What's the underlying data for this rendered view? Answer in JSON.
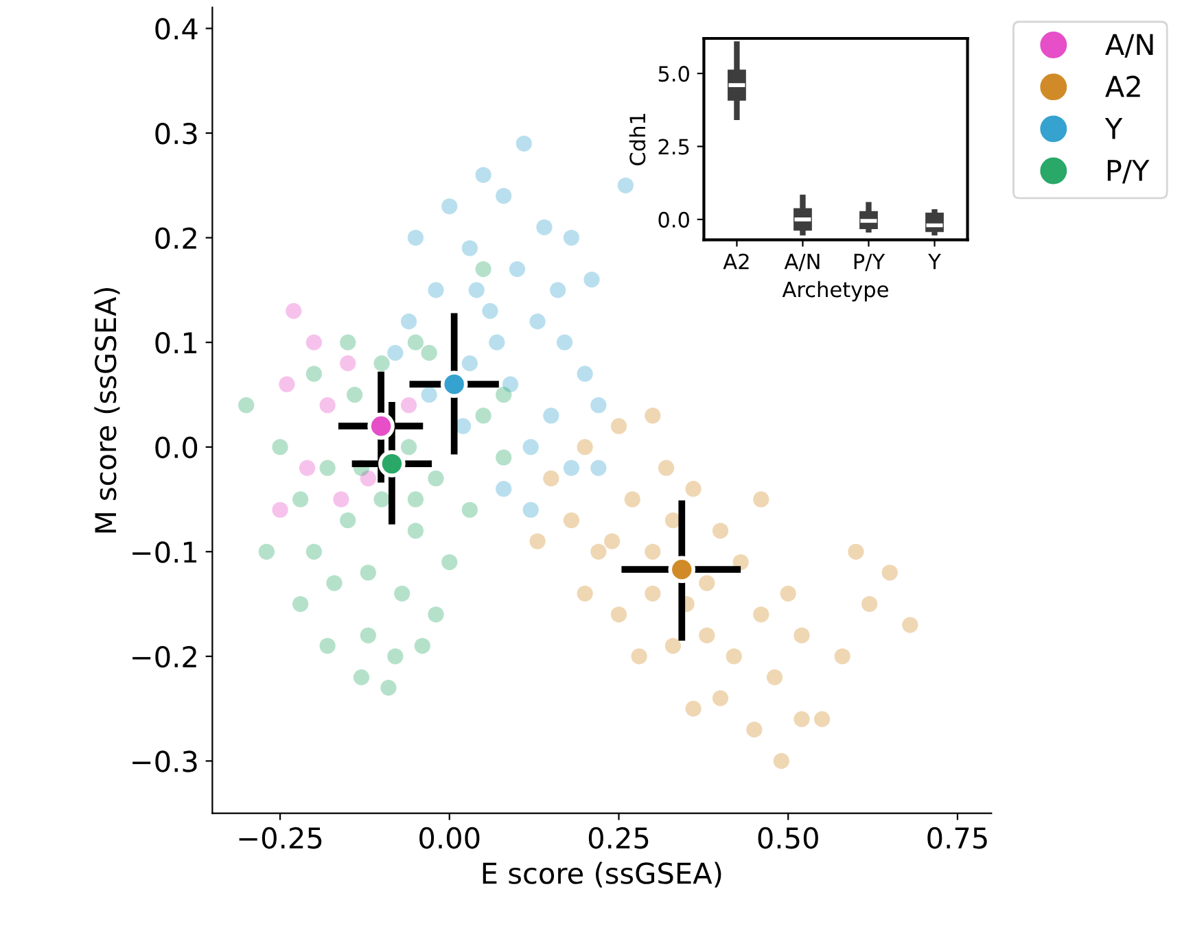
{
  "chart_data": [
    {
      "type": "scatter",
      "xlabel": "E score (ssGSEA)",
      "ylabel": "M score (ssGSEA)",
      "xlim": [
        -0.35,
        0.8
      ],
      "ylim": [
        -0.35,
        0.42
      ],
      "xticks": [
        {
          "value": -0.25,
          "label": "−0.25"
        },
        {
          "value": 0,
          "label": "0.00"
        },
        {
          "value": 0.25,
          "label": "0.25"
        },
        {
          "value": 0.5,
          "label": "0.50"
        },
        {
          "value": 0.75,
          "label": "0.75"
        }
      ],
      "yticks": [
        {
          "value": -0.3,
          "label": "−0.3"
        },
        {
          "value": -0.2,
          "label": "−0.2"
        },
        {
          "value": -0.1,
          "label": "−0.1"
        },
        {
          "value": 0,
          "label": "0.0"
        },
        {
          "value": 0.1,
          "label": "0.1"
        },
        {
          "value": 0.2,
          "label": "0.2"
        },
        {
          "value": 0.3,
          "label": "0.3"
        },
        {
          "value": 0.4,
          "label": "0.4"
        }
      ],
      "grid": false,
      "legend": "right",
      "marker": "circle",
      "series": [
        {
          "name": "A/N",
          "color": "#e64fc8",
          "x": [
            -0.23,
            -0.2,
            -0.24,
            -0.21,
            -0.25,
            -0.18,
            -0.15,
            -0.06,
            -0.12,
            -0.16
          ],
          "values": [
            0.13,
            0.1,
            0.06,
            -0.02,
            -0.06,
            0.04,
            0.08,
            0.04,
            -0.03,
            -0.05
          ]
        },
        {
          "name": "A2",
          "color": "#d08b28",
          "x": [
            0.15,
            0.2,
            0.25,
            0.3,
            0.13,
            0.18,
            0.22,
            0.27,
            0.3,
            0.33,
            0.36,
            0.4,
            0.43,
            0.38,
            0.35,
            0.3,
            0.25,
            0.2,
            0.28,
            0.33,
            0.38,
            0.42,
            0.46,
            0.5,
            0.52,
            0.48,
            0.4,
            0.36,
            0.45,
            0.52,
            0.55,
            0.49,
            0.6,
            0.62,
            0.65,
            0.68,
            0.58,
            0.46,
            0.24,
            0.32
          ],
          "values": [
            -0.03,
            0.0,
            0.02,
            0.03,
            -0.09,
            -0.07,
            -0.1,
            -0.05,
            -0.1,
            -0.07,
            -0.04,
            -0.08,
            -0.11,
            -0.13,
            -0.15,
            -0.14,
            -0.16,
            -0.14,
            -0.2,
            -0.19,
            -0.18,
            -0.2,
            -0.16,
            -0.14,
            -0.18,
            -0.22,
            -0.24,
            -0.25,
            -0.27,
            -0.26,
            -0.26,
            -0.3,
            -0.1,
            -0.15,
            -0.12,
            -0.17,
            -0.2,
            -0.05,
            -0.09,
            -0.02
          ]
        },
        {
          "name": "Y",
          "color": "#36a2cf",
          "x": [
            0.11,
            0.05,
            0.0,
            -0.05,
            0.08,
            0.14,
            0.18,
            0.21,
            0.03,
            0.1,
            -0.02,
            -0.06,
            0.06,
            0.13,
            0.17,
            0.2,
            0.22,
            0.15,
            0.09,
            0.03,
            -0.03,
            0.12,
            0.18,
            0.08,
            0.22,
            -0.08,
            0.26,
            0.02,
            0.07,
            0.16,
            0.12,
            0.04
          ],
          "values": [
            0.29,
            0.26,
            0.23,
            0.2,
            0.24,
            0.21,
            0.2,
            0.16,
            0.19,
            0.17,
            0.15,
            0.12,
            0.13,
            0.12,
            0.1,
            0.07,
            0.04,
            0.03,
            0.06,
            0.08,
            0.05,
            0.0,
            -0.02,
            -0.04,
            -0.02,
            0.09,
            0.25,
            0.02,
            0.1,
            0.15,
            -0.06,
            0.15
          ]
        },
        {
          "name": "P/Y",
          "color": "#2aa868",
          "x": [
            -0.3,
            -0.25,
            -0.22,
            -0.2,
            -0.15,
            -0.1,
            -0.05,
            -0.03,
            0.05,
            0.08,
            -0.18,
            -0.14,
            -0.06,
            -0.02,
            0.03,
            -0.2,
            -0.15,
            -0.1,
            -0.05,
            0.0,
            -0.22,
            -0.17,
            -0.12,
            -0.07,
            -0.02,
            -0.18,
            -0.12,
            -0.08,
            -0.13,
            -0.09,
            -0.04,
            0.08,
            0.05,
            -0.27,
            -0.05,
            -0.13
          ],
          "values": [
            0.04,
            0.0,
            -0.05,
            0.07,
            0.1,
            0.08,
            0.1,
            0.09,
            0.03,
            -0.01,
            -0.02,
            0.05,
            0.0,
            -0.03,
            -0.06,
            -0.1,
            -0.07,
            -0.05,
            -0.08,
            -0.11,
            -0.15,
            -0.13,
            -0.12,
            -0.14,
            -0.16,
            -0.19,
            -0.18,
            -0.2,
            -0.22,
            -0.23,
            -0.19,
            0.05,
            0.17,
            -0.1,
            -0.05,
            -0.02
          ]
        },
        {
          "type": "scatter",
          "x": [
            -0.101,
            0.343,
            0.007,
            -0.085
          ],
          "values": [
            0.02,
            -0.117,
            0.06,
            -0.016
          ],
          "colors": [
            "#e64fc8",
            "#d08b28",
            "#36a2cf",
            "#2aa868"
          ],
          "xerrors": [
            [
              -0.164,
              -0.039
            ],
            [
              0.254,
              0.43
            ],
            [
              -0.059,
              0.073
            ],
            [
              -0.144,
              -0.026
            ]
          ],
          "errors": [
            [
              -0.034,
              0.072
            ],
            [
              -0.185,
              -0.051
            ],
            [
              -0.007,
              0.128
            ],
            [
              -0.074,
              0.043
            ]
          ]
        }
      ]
    },
    {
      "type": "box",
      "xlabel": "Archetype",
      "ylabel": "Cdh1",
      "categories": [
        "A2",
        "A/N",
        "P/Y",
        "Y"
      ],
      "ylim": [
        -0.7,
        6.2
      ],
      "yticks": [
        {
          "value": 0,
          "label": "0.0"
        },
        2.5,
        {
          "value": 5,
          "label": "5.0"
        }
      ],
      "grid": false,
      "series": [
        {
          "color": "#3d3d3d",
          "boxes": [
            {
              "low": 3.5,
              "q1": 4.1,
              "median": 4.6,
              "q3": 5.1,
              "high": 6.0
            },
            {
              "low": -0.45,
              "q1": -0.35,
              "median": 0.0,
              "q3": 0.35,
              "high": 0.75
            },
            {
              "low": -0.35,
              "q1": -0.3,
              "median": -0.05,
              "q3": 0.25,
              "high": 0.5
            },
            {
              "low": -0.45,
              "q1": -0.4,
              "median": -0.2,
              "q3": 0.2,
              "high": 0.25
            }
          ]
        }
      ]
    }
  ]
}
